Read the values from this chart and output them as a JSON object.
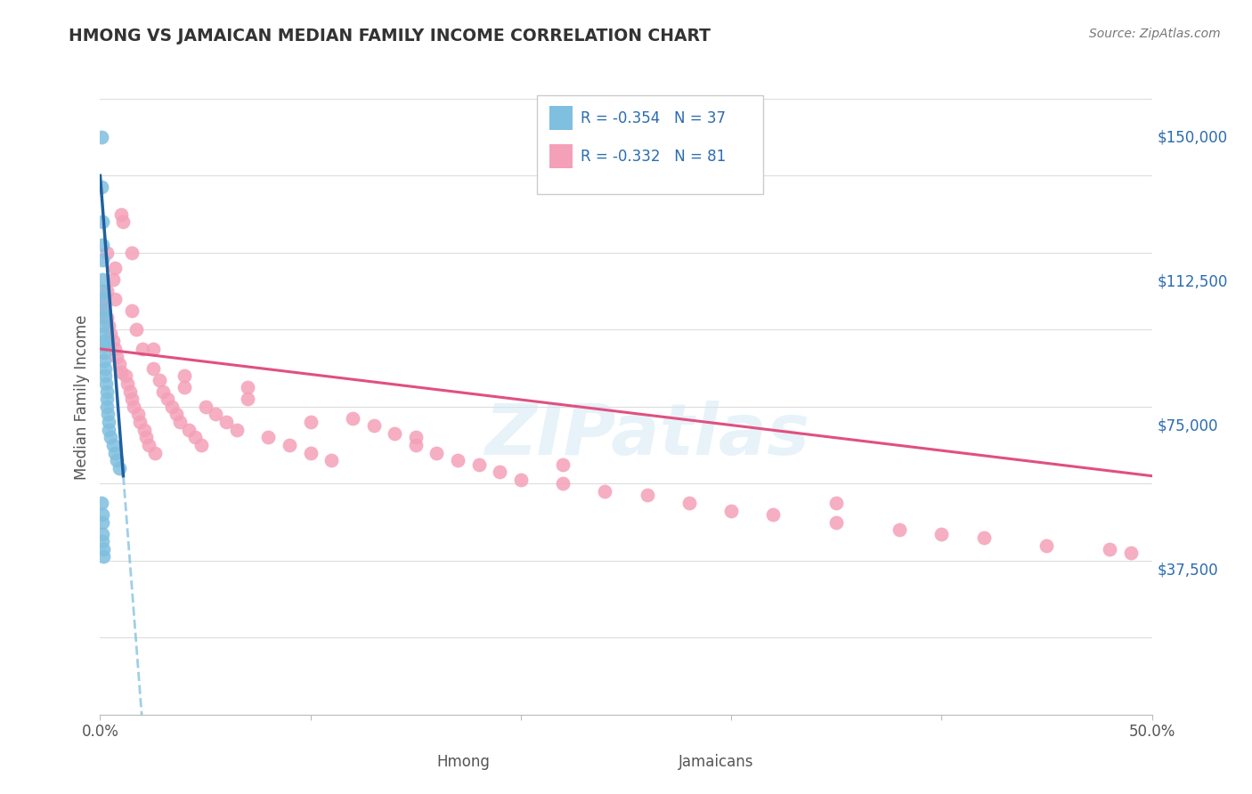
{
  "title": "HMONG VS JAMAICAN MEDIAN FAMILY INCOME CORRELATION CHART",
  "source": "Source: ZipAtlas.com",
  "ylabel": "Median Family Income",
  "xlim": [
    0,
    0.5
  ],
  "ylim": [
    0,
    165000
  ],
  "yticks": [
    0,
    37500,
    75000,
    112500,
    150000
  ],
  "ytick_labels": [
    "",
    "$37,500",
    "$75,000",
    "$112,500",
    "$150,000"
  ],
  "xticks": [
    0.0,
    0.1,
    0.2,
    0.3,
    0.4,
    0.5
  ],
  "xtick_labels": [
    "0.0%",
    "",
    "",
    "",
    "",
    "50.0%"
  ],
  "hmong_color": "#7fbfdf",
  "jamaican_color": "#f4a0b8",
  "hmong_R": -0.354,
  "hmong_N": 37,
  "jamaican_R": -0.332,
  "jamaican_N": 81,
  "watermark": "ZIPatlas",
  "background_color": "#ffffff",
  "grid_color": "#dddddd",
  "hmong_x": [
    0.0008,
    0.0008,
    0.0009,
    0.001,
    0.001,
    0.001,
    0.0012,
    0.0013,
    0.0014,
    0.0015,
    0.0016,
    0.0017,
    0.0018,
    0.002,
    0.002,
    0.002,
    0.0022,
    0.0024,
    0.0026,
    0.003,
    0.003,
    0.0032,
    0.0034,
    0.004,
    0.004,
    0.005,
    0.006,
    0.007,
    0.008,
    0.009,
    0.0008,
    0.0009,
    0.001,
    0.001,
    0.0012,
    0.0014,
    0.0016
  ],
  "hmong_y": [
    150000,
    137000,
    128000,
    122000,
    118000,
    113000,
    110000,
    108000,
    105000,
    103000,
    101000,
    99000,
    97000,
    96000,
    94000,
    92000,
    90000,
    88000,
    86000,
    84000,
    82000,
    80000,
    78000,
    76000,
    74000,
    72000,
    70000,
    68000,
    66000,
    64000,
    55000,
    52000,
    50000,
    47000,
    45000,
    43000,
    41000
  ],
  "jamaican_x": [
    0.001,
    0.002,
    0.003,
    0.003,
    0.004,
    0.005,
    0.006,
    0.006,
    0.007,
    0.007,
    0.008,
    0.009,
    0.01,
    0.01,
    0.011,
    0.012,
    0.013,
    0.014,
    0.015,
    0.015,
    0.016,
    0.017,
    0.018,
    0.019,
    0.02,
    0.021,
    0.022,
    0.023,
    0.025,
    0.026,
    0.028,
    0.03,
    0.032,
    0.034,
    0.036,
    0.038,
    0.04,
    0.042,
    0.045,
    0.048,
    0.05,
    0.055,
    0.06,
    0.065,
    0.07,
    0.08,
    0.09,
    0.1,
    0.11,
    0.12,
    0.13,
    0.14,
    0.15,
    0.16,
    0.17,
    0.18,
    0.19,
    0.2,
    0.22,
    0.24,
    0.26,
    0.28,
    0.3,
    0.32,
    0.35,
    0.38,
    0.4,
    0.42,
    0.45,
    0.48,
    0.007,
    0.015,
    0.025,
    0.04,
    0.07,
    0.1,
    0.15,
    0.22,
    0.35,
    0.49,
    0.003
  ],
  "jamaican_y": [
    107000,
    105000,
    103000,
    120000,
    101000,
    99000,
    113000,
    97000,
    116000,
    95000,
    93000,
    91000,
    130000,
    89000,
    128000,
    88000,
    86000,
    84000,
    120000,
    82000,
    80000,
    100000,
    78000,
    76000,
    95000,
    74000,
    72000,
    70000,
    90000,
    68000,
    87000,
    84000,
    82000,
    80000,
    78000,
    76000,
    85000,
    74000,
    72000,
    70000,
    80000,
    78000,
    76000,
    74000,
    85000,
    72000,
    70000,
    68000,
    66000,
    77000,
    75000,
    73000,
    70000,
    68000,
    66000,
    65000,
    63000,
    61000,
    60000,
    58000,
    57000,
    55000,
    53000,
    52000,
    50000,
    48000,
    47000,
    46000,
    44000,
    43000,
    108000,
    105000,
    95000,
    88000,
    82000,
    76000,
    72000,
    65000,
    55000,
    42000,
    110000
  ]
}
